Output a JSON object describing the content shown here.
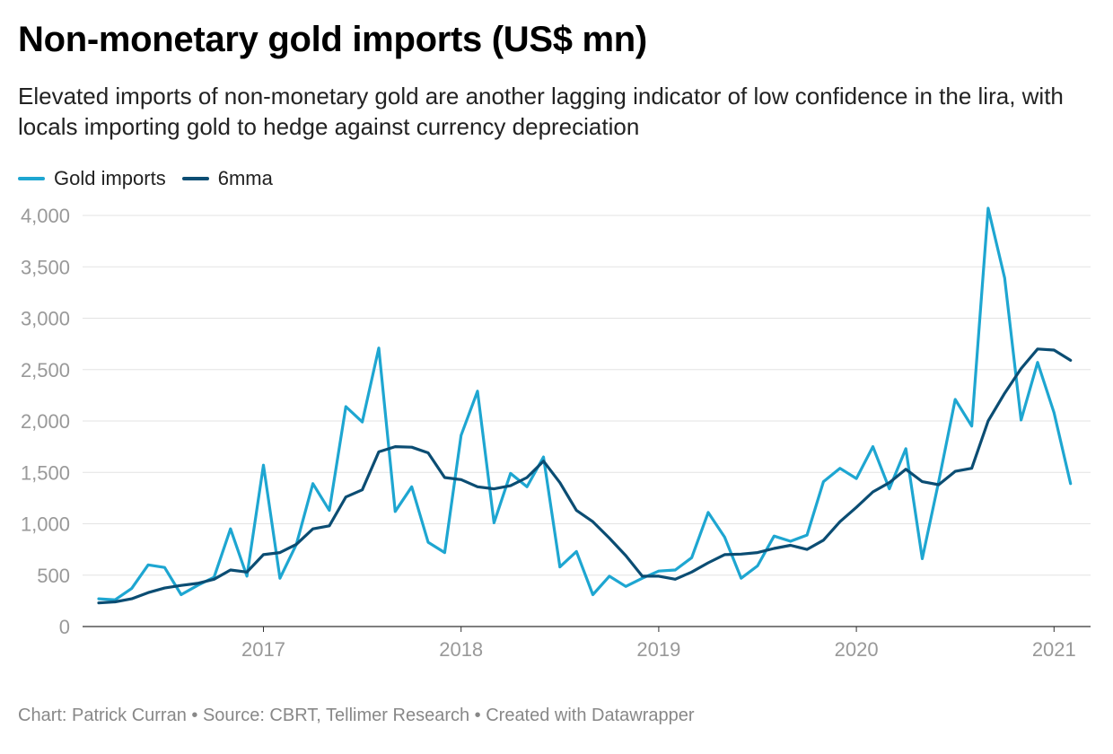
{
  "header": {
    "title": "Non-monetary gold imports (US$ mn)",
    "subtitle": "Elevated imports of non-monetary gold are another lagging indicator of low confidence in the lira, with locals importing gold to hedge against currency depreciation"
  },
  "legend": {
    "items": [
      {
        "label": "Gold imports",
        "color": "#1ea6d1"
      },
      {
        "label": "6mma",
        "color": "#0b4d73"
      }
    ]
  },
  "footer": {
    "text": "Chart: Patrick Curran • Source: CBRT, Tellimer Research • Created with Datawrapper"
  },
  "chart_data": {
    "type": "line",
    "title": "Non-monetary gold imports (US$ mn)",
    "xlabel": "",
    "ylabel": "",
    "x_start": "2016-03",
    "x_end": "2021-03",
    "ylim": [
      0,
      4000
    ],
    "yticks": [
      0,
      500,
      1000,
      1500,
      2000,
      2500,
      3000,
      3500,
      4000
    ],
    "ytick_labels": [
      "0",
      "500",
      "1,000",
      "1,500",
      "2,000",
      "2,500",
      "3,000",
      "3,500",
      "4,000"
    ],
    "xticks": [
      {
        "label": "2017",
        "month_index": 10
      },
      {
        "label": "2018",
        "month_index": 22
      },
      {
        "label": "2019",
        "month_index": 34
      },
      {
        "label": "2020",
        "month_index": 46
      },
      {
        "label": "2021",
        "month_index": 58
      }
    ],
    "grid": true,
    "legend_position": "top-left",
    "series": [
      {
        "name": "Gold imports",
        "color": "#1ea6d1",
        "values": [
          270,
          260,
          370,
          600,
          575,
          310,
          400,
          480,
          950,
          490,
          1570,
          470,
          800,
          1390,
          1130,
          2140,
          1990,
          2710,
          1120,
          1360,
          820,
          720,
          1860,
          2290,
          1010,
          1490,
          1360,
          1650,
          580,
          730,
          310,
          490,
          390,
          470,
          540,
          550,
          670,
          1110,
          870,
          470,
          590,
          880,
          830,
          890,
          1410,
          1540,
          1440,
          1750,
          1340,
          1730,
          660,
          1410,
          2210,
          1950,
          4070,
          3390,
          2010,
          2570,
          2080,
          1390
        ]
      },
      {
        "name": "6mma",
        "color": "#0b4d73",
        "values": [
          230,
          240,
          270,
          330,
          375,
          400,
          420,
          460,
          550,
          530,
          700,
          720,
          800,
          950,
          980,
          1260,
          1330,
          1700,
          1750,
          1745,
          1690,
          1450,
          1430,
          1360,
          1340,
          1370,
          1450,
          1610,
          1400,
          1130,
          1020,
          860,
          690,
          490,
          490,
          460,
          530,
          620,
          700,
          705,
          720,
          760,
          790,
          750,
          840,
          1020,
          1160,
          1310,
          1400,
          1530,
          1410,
          1380,
          1510,
          1540,
          2000,
          2270,
          2510,
          2700,
          2690,
          2590
        ]
      }
    ]
  }
}
